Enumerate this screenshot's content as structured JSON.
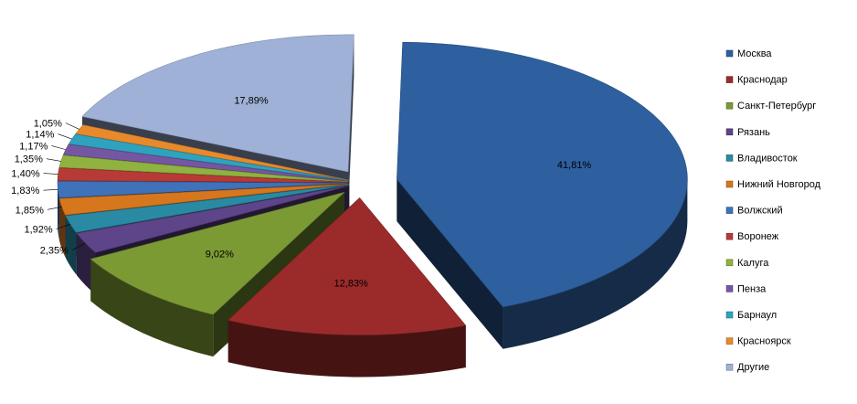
{
  "chart_data": {
    "type": "pie",
    "style": "3d-exploded",
    "legend_position": "right",
    "slices": [
      {
        "label": "Москва",
        "value": 41.81,
        "text": "41,81%",
        "color": "#2e5f9e"
      },
      {
        "label": "Краснодар",
        "value": 12.83,
        "text": "12,83%",
        "color": "#9b2b2a"
      },
      {
        "label": "Санкт-Петербург",
        "value": 9.02,
        "text": "9,02%",
        "color": "#7c9a34"
      },
      {
        "label": "Рязань",
        "value": 2.35,
        "text": "2,35%",
        "color": "#5e4489"
      },
      {
        "label": "Владивосток",
        "value": 1.92,
        "text": "1,92%",
        "color": "#2a8aa3"
      },
      {
        "label": "Нижний Новгород",
        "value": 1.85,
        "text": "1,85%",
        "color": "#d6771e"
      },
      {
        "label": "Волжский",
        "value": 1.83,
        "text": "1,83%",
        "color": "#3f72b8"
      },
      {
        "label": "Воронеж",
        "value": 1.4,
        "text": "1,40%",
        "color": "#b83a36"
      },
      {
        "label": "Калуга",
        "value": 1.35,
        "text": "1,35%",
        "color": "#8fb240"
      },
      {
        "label": "Пенза",
        "value": 1.17,
        "text": "1,17%",
        "color": "#7556a3"
      },
      {
        "label": "Барнаул",
        "value": 1.14,
        "text": "1,14%",
        "color": "#2fa2be"
      },
      {
        "label": "Красноярск",
        "value": 1.05,
        "text": "1,05%",
        "color": "#e88a2b"
      },
      {
        "label": "Другие",
        "value": 17.89,
        "text": "17,89%",
        "color": "#9fb1d6"
      }
    ]
  }
}
